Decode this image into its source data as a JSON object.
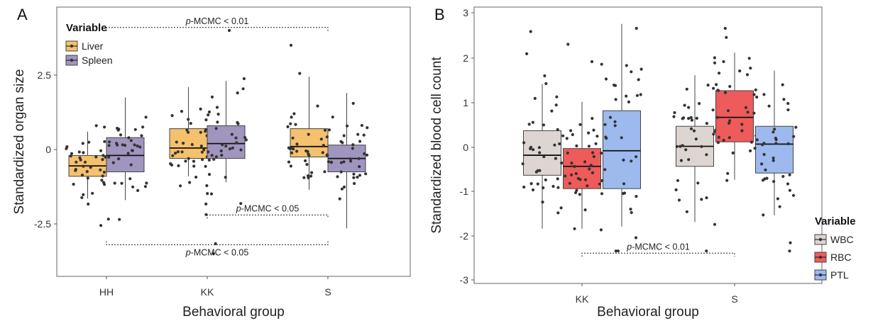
{
  "colors": {
    "liver": "#F5C16C",
    "spleen": "#A095BF",
    "wbc": "#DDD5D2",
    "rbc": "#EE5B5B",
    "ptl": "#9DB9EE",
    "points": "#333333",
    "frame": "#666666"
  },
  "chart_data": [
    {
      "panel_label": "A",
      "type": "boxplot",
      "xlabel": "Behavioral group",
      "ylabel": "Standardized organ size",
      "categories": [
        "HH",
        "KK",
        "S"
      ],
      "yticks": [
        "2.5",
        "0",
        "-2.5"
      ],
      "ylim": [
        -4.2,
        4.4
      ],
      "legend": {
        "title": "Variable",
        "position": "top-left",
        "entries": [
          "Liver",
          "Spleen"
        ]
      },
      "series": [
        {
          "name": "Liver",
          "color_key": "liver",
          "boxes": [
            {
              "category": "HH",
              "min": -1.65,
              "q1": -0.9,
              "median": -0.55,
              "q3": -0.2,
              "max": 0.6
            },
            {
              "category": "KK",
              "min": -0.9,
              "q1": -0.3,
              "median": 0.05,
              "q3": 0.7,
              "max": 2.1
            },
            {
              "category": "S",
              "min": -1.35,
              "q1": -0.25,
              "median": 0.1,
              "q3": 0.7,
              "max": 2.45
            }
          ]
        },
        {
          "name": "Spleen",
          "color_key": "spleen",
          "boxes": [
            {
              "category": "HH",
              "min": -1.7,
              "q1": -0.75,
              "median": -0.2,
              "q3": 0.4,
              "max": 1.75
            },
            {
              "category": "KK",
              "min": -1.1,
              "q1": -0.3,
              "median": 0.2,
              "q3": 0.8,
              "max": 2.3
            },
            {
              "category": "S",
              "min": -2.65,
              "q1": -0.75,
              "median": -0.3,
              "q3": 0.15,
              "max": 1.9
            }
          ]
        }
      ],
      "annotations": [
        {
          "prefix": "p",
          "text": "-MCMC < 0.01",
          "from": "HH",
          "to": "S",
          "y": 4.1,
          "label_side": "above"
        },
        {
          "prefix": "p",
          "text": "-MCMC < 0.05",
          "from": "KK",
          "to": "S",
          "y": -2.2,
          "label_side": "above"
        },
        {
          "prefix": "p",
          "text": "-MCMC < 0.05",
          "from": "HH",
          "to": "S",
          "y": -3.2,
          "label_side": "below"
        }
      ]
    },
    {
      "panel_label": "B",
      "type": "boxplot",
      "xlabel": "Behavioral group",
      "ylabel": "Standardized blood cell count",
      "categories": [
        "KK",
        "S"
      ],
      "yticks": [
        "3",
        "2",
        "1",
        "0",
        "-1",
        "-2",
        "-3"
      ],
      "ylim": [
        -3.05,
        3.05
      ],
      "legend": {
        "title": "Variable",
        "position": "bottom-right",
        "entries": [
          "WBC",
          "RBC",
          "PTL"
        ]
      },
      "series": [
        {
          "name": "WBC",
          "color_key": "wbc",
          "boxes": [
            {
              "category": "KK",
              "min": -1.85,
              "q1": -0.65,
              "median": -0.2,
              "q3": 0.35,
              "max": 1.4
            },
            {
              "category": "S",
              "min": -1.7,
              "q1": -0.45,
              "median": 0.0,
              "q3": 0.45,
              "max": 1.6
            }
          ]
        },
        {
          "name": "RBC",
          "color_key": "rbc",
          "boxes": [
            {
              "category": "KK",
              "min": -1.85,
              "q1": -0.95,
              "median": -0.45,
              "q3": -0.05,
              "max": 1.0
            },
            {
              "category": "S",
              "min": -0.75,
              "q1": 0.1,
              "median": 0.65,
              "q3": 1.25,
              "max": 2.1
            }
          ]
        },
        {
          "name": "PTL",
          "color_key": "ptl",
          "boxes": [
            {
              "category": "KK",
              "min": -1.8,
              "q1": -0.95,
              "median": -0.1,
              "q3": 0.8,
              "max": 2.75
            },
            {
              "category": "S",
              "min": -1.55,
              "q1": -0.6,
              "median": 0.05,
              "q3": 0.45,
              "max": 1.7
            }
          ]
        }
      ],
      "annotations": [
        {
          "prefix": "p",
          "text": "-MCMC < 0.01",
          "from": "KK",
          "to": "S",
          "y": -2.4,
          "label_side": "above"
        }
      ]
    }
  ]
}
